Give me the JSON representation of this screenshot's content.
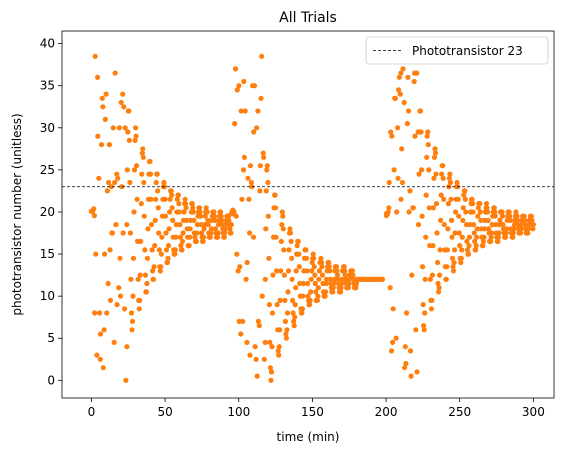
{
  "chart_data": {
    "type": "scatter",
    "title": "All Trials",
    "xlabel": "time (min)",
    "ylabel": "phototransistor number (unitless)",
    "xlim": [
      -20,
      314
    ],
    "ylim": [
      -2.1,
      41.5
    ],
    "xticks": [
      0,
      50,
      100,
      150,
      200,
      250,
      300
    ],
    "yticks": [
      0,
      5,
      10,
      15,
      20,
      25,
      30,
      35,
      40
    ],
    "xtick_labels": [
      "0",
      "50",
      "100",
      "150",
      "200",
      "250",
      "300"
    ],
    "ytick_labels": [
      "0",
      "5",
      "10",
      "15",
      "20",
      "25",
      "30",
      "35",
      "40"
    ],
    "grid": false,
    "legend": {
      "placement": "top-right",
      "entries": [
        "Phototransistor 23"
      ]
    },
    "reference_line": {
      "name": "Phototransistor 23",
      "y": 23,
      "style": "dashed",
      "color": "#000000"
    },
    "marker_color": "#ff7f0e",
    "trials": [
      {
        "t_start": 0,
        "t_end": 95,
        "y_start": 20,
        "y_final": 18.5,
        "chaos_until": 24,
        "ring_until": 95,
        "amp": 14,
        "period": 4.8,
        "decay": 22
      },
      {
        "t_start": 95,
        "t_end": 198,
        "y_start": 20,
        "y_final": 12,
        "chaos_until": 118,
        "ring_until": 180,
        "amp": 14,
        "period": 5.2,
        "decay": 18
      },
      {
        "t_start": 200,
        "t_end": 300,
        "y_start": 20,
        "y_final": 18.5,
        "chaos_until": 222,
        "ring_until": 300,
        "amp": 14,
        "period": 5.0,
        "decay": 22
      }
    ]
  }
}
